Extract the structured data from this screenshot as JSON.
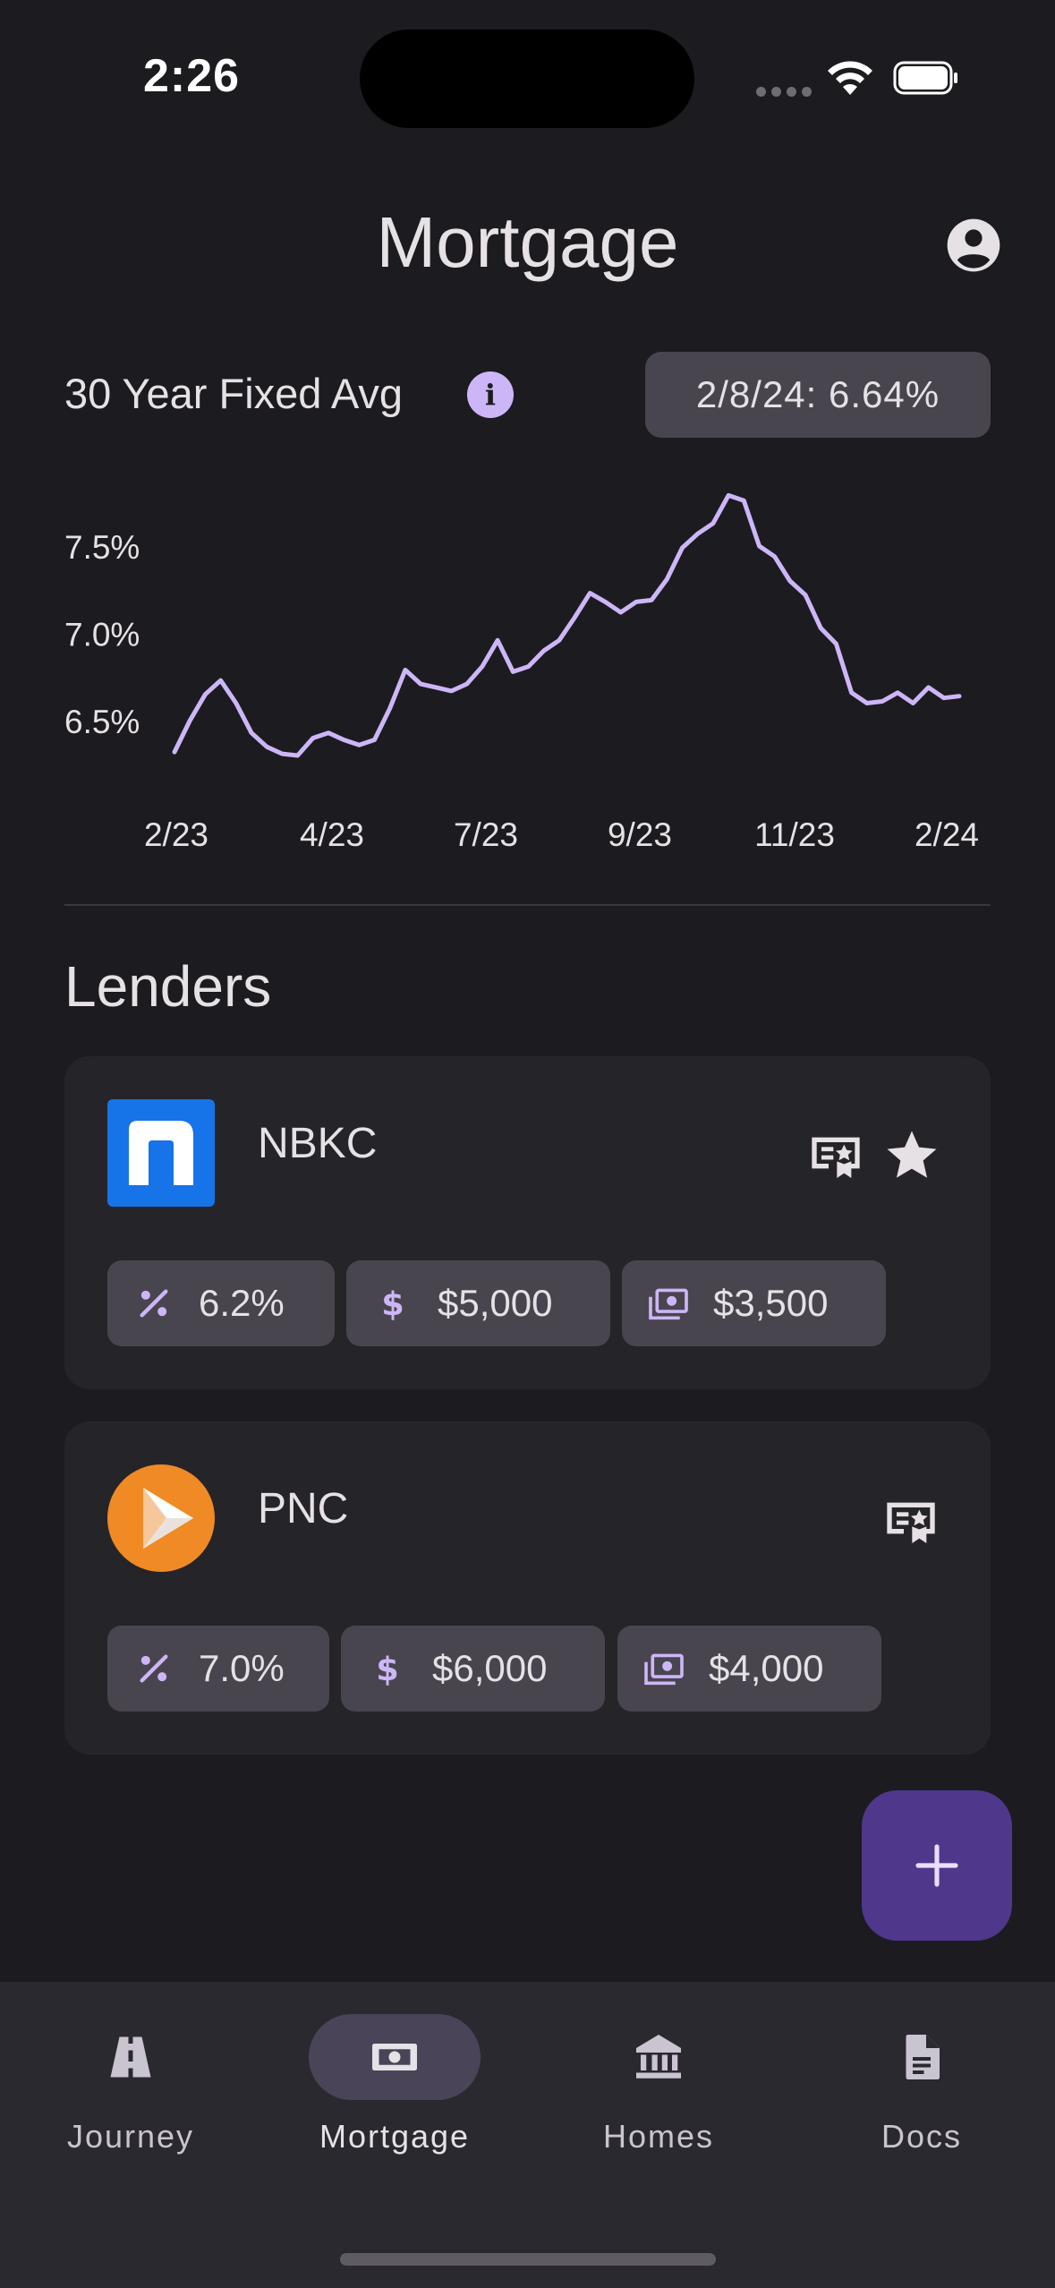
{
  "status_bar": {
    "time": "2:26"
  },
  "header": {
    "title": "Mortgage"
  },
  "rate_summary": {
    "label": "30 Year Fixed Avg",
    "current_chip": "2/8/24: 6.64%"
  },
  "chart_data": {
    "type": "line",
    "title": "",
    "xlabel": "",
    "ylabel": "",
    "x_ticks": [
      "2/23",
      "4/23",
      "7/23",
      "9/23",
      "11/23",
      "2/24"
    ],
    "y_ticks": [
      "6.5%",
      "7.0%",
      "7.5%"
    ],
    "ylim": [
      6.3,
      7.85
    ],
    "color": "#cdb6f7",
    "grid": false,
    "series": [
      {
        "values": [
          6.32,
          6.5,
          6.65,
          6.73,
          6.6,
          6.43,
          6.35,
          6.31,
          6.3,
          6.4,
          6.43,
          6.39,
          6.36,
          6.39,
          6.57,
          6.79,
          6.71,
          6.69,
          6.67,
          6.71,
          6.81,
          6.96,
          6.78,
          6.81,
          6.9,
          6.96,
          7.09,
          7.23,
          7.18,
          7.12,
          7.18,
          7.19,
          7.31,
          7.49,
          7.57,
          7.63,
          7.79,
          7.76,
          7.5,
          7.44,
          7.3,
          7.22,
          7.03,
          6.94,
          6.66,
          6.6,
          6.61,
          6.66,
          6.6,
          6.69,
          6.63,
          6.64
        ]
      }
    ]
  },
  "lenders_section": {
    "heading": "Lenders"
  },
  "lenders": [
    {
      "name": "NBKC",
      "rate": "6.2%",
      "fees": "$5,000",
      "credits": "$3,500",
      "favorite": true,
      "logo_color": "#1773e8"
    },
    {
      "name": "PNC",
      "rate": "7.0%",
      "fees": "$6,000",
      "credits": "$4,000",
      "favorite": false,
      "logo_color": "#f08a24"
    }
  ],
  "fab": {
    "icon": "plus-icon"
  },
  "bottom_nav": {
    "items": [
      {
        "label": "Journey",
        "icon": "road-icon",
        "active": false
      },
      {
        "label": "Mortgage",
        "icon": "money-icon",
        "active": true
      },
      {
        "label": "Homes",
        "icon": "bank-icon",
        "active": false
      },
      {
        "label": "Docs",
        "icon": "document-icon",
        "active": false
      }
    ]
  }
}
